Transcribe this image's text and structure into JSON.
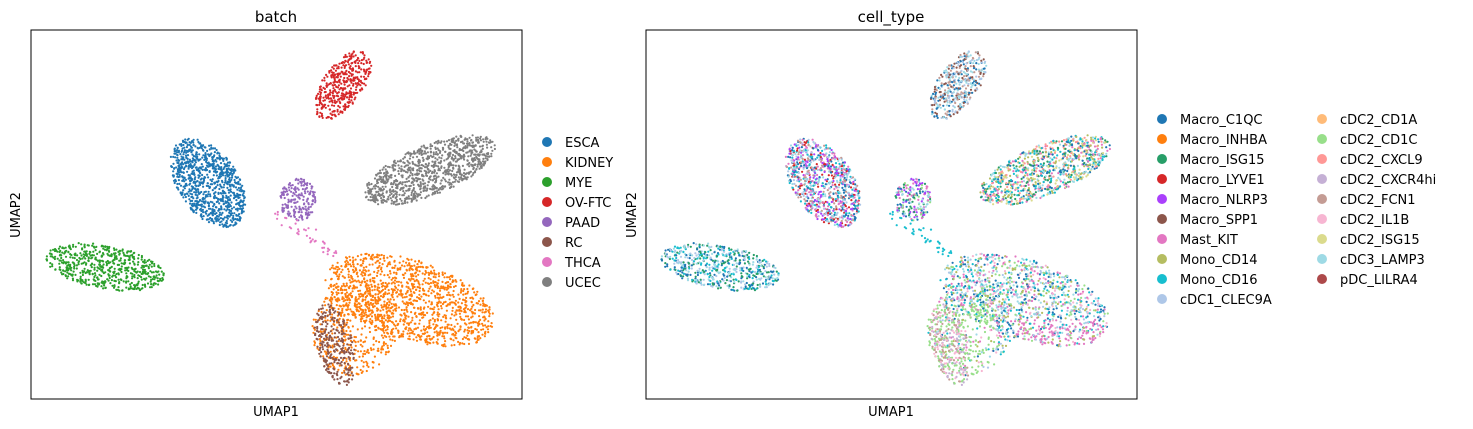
{
  "chart_data": [
    {
      "type": "scatter",
      "title": "batch",
      "xlabel": "UMAP1",
      "ylabel": "UMAP2",
      "grid": false,
      "ticks": false,
      "legend_position": "right",
      "series": [
        {
          "name": "ESCA",
          "color": "#1f77b4"
        },
        {
          "name": "KIDNEY",
          "color": "#ff7f0e"
        },
        {
          "name": "MYE",
          "color": "#2ca02c"
        },
        {
          "name": "OV-FTC",
          "color": "#d62728"
        },
        {
          "name": "PAAD",
          "color": "#9467bd"
        },
        {
          "name": "RC",
          "color": "#8c564b"
        },
        {
          "name": "THCA",
          "color": "#e377c2"
        },
        {
          "name": "UCEC",
          "color": "#7f7f7f"
        }
      ]
    },
    {
      "type": "scatter",
      "title": "cell_type",
      "xlabel": "UMAP1",
      "ylabel": "UMAP2",
      "grid": false,
      "ticks": false,
      "legend_position": "right",
      "series": [
        {
          "name": "Macro_C1QC",
          "color": "#1f77b4"
        },
        {
          "name": "Macro_INHBA",
          "color": "#ff7f0e"
        },
        {
          "name": "Macro_ISG15",
          "color": "#279e68"
        },
        {
          "name": "Macro_LYVE1",
          "color": "#d62728"
        },
        {
          "name": "Macro_NLRP3",
          "color": "#aa40fc"
        },
        {
          "name": "Macro_SPP1",
          "color": "#8c564b"
        },
        {
          "name": "Mast_KIT",
          "color": "#e377c2"
        },
        {
          "name": "Mono_CD14",
          "color": "#b5bd61"
        },
        {
          "name": "Mono_CD16",
          "color": "#17becf"
        },
        {
          "name": "cDC1_CLEC9A",
          "color": "#aec7e8"
        },
        {
          "name": "cDC2_CD1A",
          "color": "#ffbb78"
        },
        {
          "name": "cDC2_CD1C",
          "color": "#98df8a"
        },
        {
          "name": "cDC2_CXCL9",
          "color": "#ff9896"
        },
        {
          "name": "cDC2_CXCR4hi",
          "color": "#c5b0d5"
        },
        {
          "name": "cDC2_FCN1",
          "color": "#c49c94"
        },
        {
          "name": "cDC2_IL1B",
          "color": "#f7b6d2"
        },
        {
          "name": "cDC2_ISG15",
          "color": "#dbdb8d"
        },
        {
          "name": "cDC3_LAMP3",
          "color": "#9edae5"
        },
        {
          "name": "pDC_LILRA4",
          "color": "#ad494a"
        }
      ]
    }
  ]
}
